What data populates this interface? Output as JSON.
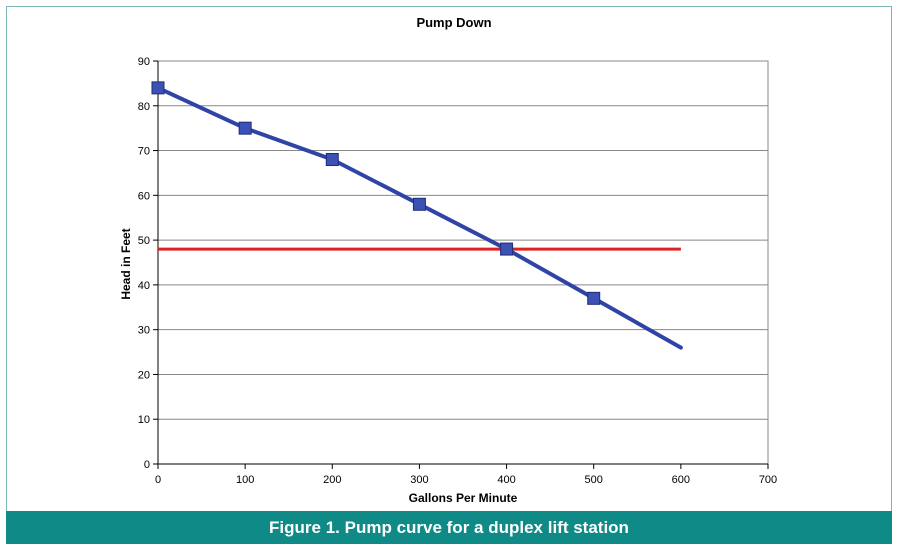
{
  "caption": "Figure 1. Pump curve for a duplex lift station",
  "colors": {
    "frame": "#7fb7b4",
    "caption_bg": "#108a86",
    "curve": "#2f44a6",
    "marker": "#3b52b4",
    "reference": "#dd2222",
    "grid": "#888888"
  },
  "chart_data": {
    "type": "line",
    "title": "Pump Down",
    "xlabel": "Gallons Per Minute",
    "ylabel": "Head in Feet",
    "xlim": [
      0,
      700
    ],
    "ylim": [
      0,
      90
    ],
    "xticks": [
      0,
      100,
      200,
      300,
      400,
      500,
      600,
      700
    ],
    "yticks": [
      0,
      10,
      20,
      30,
      40,
      50,
      60,
      70,
      80,
      90
    ],
    "grid": "horizontal",
    "legend": "none",
    "series": [
      {
        "x": [
          0,
          100,
          200,
          300,
          400,
          500,
          600
        ],
        "y": [
          84,
          75,
          68,
          58,
          48,
          37,
          26
        ],
        "markers": [
          true,
          true,
          true,
          true,
          true,
          true,
          false
        ]
      },
      {
        "x": [
          0,
          600
        ],
        "y": [
          48,
          48
        ],
        "markers": [
          false,
          false
        ]
      }
    ]
  }
}
